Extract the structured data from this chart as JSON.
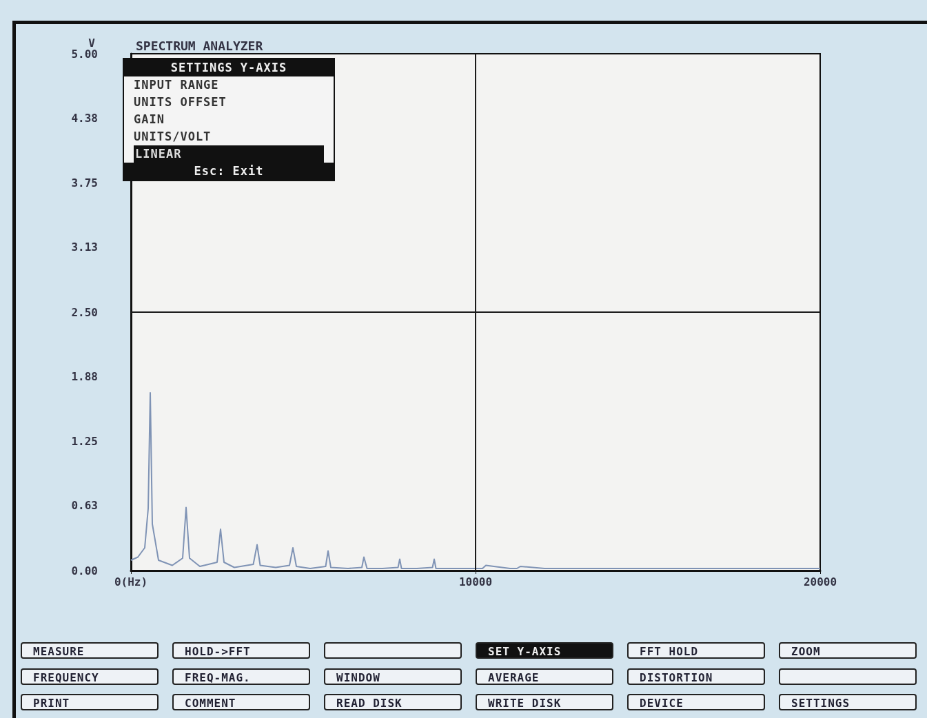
{
  "chart_data": {
    "type": "line",
    "title": "SPECTRUM ANALYZER",
    "ylabel": "V",
    "x": [
      0,
      200,
      400,
      500,
      560,
      620,
      800,
      1200,
      1500,
      1600,
      1700,
      2000,
      2500,
      2600,
      2700,
      3000,
      3550,
      3660,
      3750,
      4200,
      4600,
      4700,
      4800,
      5200,
      5650,
      5720,
      5800,
      6300,
      6700,
      6760,
      6850,
      7300,
      7750,
      7800,
      7850,
      8300,
      8750,
      8800,
      8850,
      9500,
      10200,
      10300,
      11000,
      11200,
      11300,
      12000,
      13000,
      14000,
      15000,
      16000,
      17000,
      18000,
      19000,
      20000
    ],
    "series": [
      {
        "color": "#7f93b5",
        "values": [
          0.1,
          0.13,
          0.22,
          0.6,
          1.72,
          0.45,
          0.1,
          0.05,
          0.12,
          0.61,
          0.12,
          0.04,
          0.08,
          0.4,
          0.08,
          0.03,
          0.06,
          0.25,
          0.05,
          0.03,
          0.05,
          0.22,
          0.04,
          0.02,
          0.04,
          0.19,
          0.03,
          0.02,
          0.03,
          0.13,
          0.02,
          0.02,
          0.03,
          0.11,
          0.02,
          0.02,
          0.03,
          0.11,
          0.02,
          0.02,
          0.02,
          0.05,
          0.02,
          0.02,
          0.04,
          0.02,
          0.02,
          0.02,
          0.02,
          0.02,
          0.02,
          0.02,
          0.02,
          0.02
        ]
      }
    ],
    "xlim": [
      0,
      20000
    ],
    "xticks": [
      {
        "value": 0,
        "label": "0(Hz)"
      },
      10000,
      20000
    ],
    "ylim": [
      0,
      5
    ],
    "yticks": [
      {
        "value": 0,
        "label": "0.00"
      },
      0.63,
      1.25,
      1.88,
      {
        "value": 2.5,
        "label": "2.50"
      },
      3.13,
      3.75,
      4.38,
      {
        "value": 5,
        "label": "5.00"
      }
    ],
    "grid": false,
    "marker": "none",
    "line_style": "solid",
    "ref_lines": [
      {
        "axis": "x",
        "value": 10000,
        "color": "#1a1a1a"
      },
      {
        "axis": "y",
        "value": 2.5,
        "color": "#1a1a1a"
      }
    ],
    "annotations": [
      "SETTINGS Y-AXIS",
      "INPUT RANGE",
      "UNITS OFFSET",
      "GAIN",
      "UNITS/VOLT",
      "LINEAR",
      "Esc: Exit",
      "MEASURE",
      "HOLD->FFT",
      "SET Y-AXIS",
      "FFT HOLD",
      "ZOOM",
      "FREQUENCY",
      "FREQ-MAG.",
      "WINDOW",
      "AVERAGE",
      "DISTORTION",
      "PRINT",
      "COMMENT",
      "READ DISK",
      "WRITE DISK",
      "DEVICE",
      "SETTINGS"
    ]
  }
}
